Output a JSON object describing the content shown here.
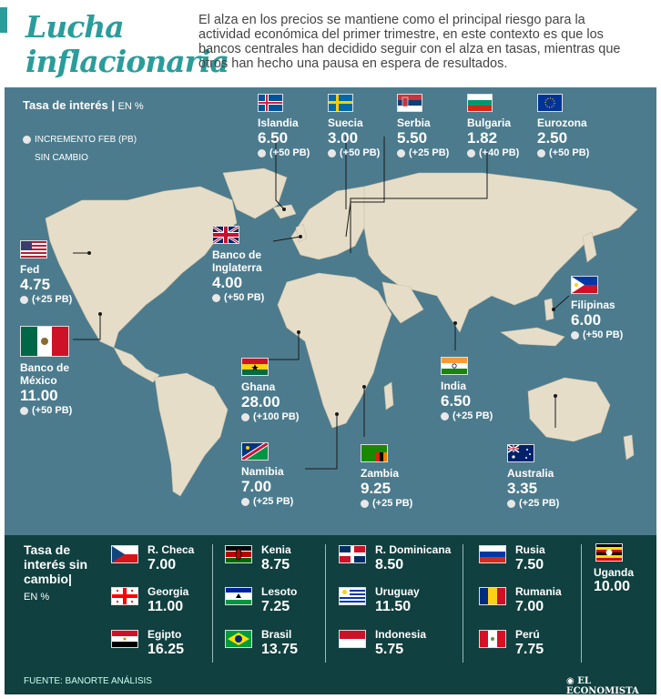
{
  "header": {
    "title_line1": "Lucha",
    "title_line2": "inflacionaria",
    "intro": "El alza en los precios se mantiene como el principal riesgo para la actividad económica del primer trimestre, en este contexto es que los bancos centrales han decidido seguir con el alza en tasas, mientras que otros han hecho una pausa en espera de resultados."
  },
  "legend": {
    "title": "Tasa de interés",
    "unit": "EN %",
    "increment_label": "INCREMENTO FEB (PB)",
    "unchanged_label": "SIN CAMBIO"
  },
  "countries_top": [
    {
      "name": "Islandia",
      "value": "6.50",
      "change": "(+50 PB)"
    },
    {
      "name": "Suecia",
      "value": "3.00",
      "change": "(+50 PB)"
    },
    {
      "name": "Serbia",
      "value": "5.50",
      "change": "(+25 PB)"
    },
    {
      "name": "Bulgaria",
      "value": "1.82",
      "change": "(+40 PB)"
    },
    {
      "name": "Eurozona",
      "value": "2.50",
      "change": "(+50 PB)"
    }
  ],
  "countries_map": {
    "fed": {
      "name": "Fed",
      "value": "4.75",
      "change": "(+25 PB)"
    },
    "uk": {
      "name_l1": "Banco de",
      "name_l2": "Inglaterra",
      "value": "4.00",
      "change": "(+50 PB)"
    },
    "mexico": {
      "name_l1": "Banco de",
      "name_l2": "México",
      "value": "11.00",
      "change": "(+50 PB)"
    },
    "ghana": {
      "name": "Ghana",
      "value": "28.00",
      "change": "(+100 PB)"
    },
    "namibia": {
      "name": "Namibia",
      "value": "7.00",
      "change": "(+25 PB)"
    },
    "zambia": {
      "name": "Zambia",
      "value": "9.25",
      "change": "(+25 PB)"
    },
    "india": {
      "name": "India",
      "value": "6.50",
      "change": "(+25 PB)"
    },
    "filipinas": {
      "name": "Filipinas",
      "value": "6.00",
      "change": "(+50 PB)"
    },
    "australia": {
      "name": "Australia",
      "value": "3.35",
      "change": "(+25 PB)"
    }
  },
  "unchanged": {
    "title_l1": "Tasa de",
    "title_l2": "interés sin",
    "title_l3": "cambio",
    "unit": "EN %",
    "items": [
      {
        "name": "R. Checa",
        "value": "7.00"
      },
      {
        "name": "Georgia",
        "value": "11.00"
      },
      {
        "name": "Egipto",
        "value": "16.25"
      },
      {
        "name": "Kenia",
        "value": "8.75"
      },
      {
        "name": "Lesoto",
        "value": "7.25"
      },
      {
        "name": "Brasil",
        "value": "13.75"
      },
      {
        "name": "R. Dominicana",
        "value": "8.50"
      },
      {
        "name": "Uruguay",
        "value": "11.50"
      },
      {
        "name": "Indonesia",
        "value": "5.75"
      },
      {
        "name": "Rusia",
        "value": "7.50"
      },
      {
        "name": "Rumania",
        "value": "7.00"
      },
      {
        "name": "Perú",
        "value": "7.75"
      },
      {
        "name": "Uganda",
        "value": "10.00"
      }
    ]
  },
  "footer": {
    "source": "FUENTE: BANORTE ANÁLISIS",
    "brand": "EL ECONOMISTA"
  },
  "colors": {
    "accent": "#2a9d9b",
    "map_bg": "#4c7b8d",
    "land": "#e6ddc8",
    "lower_bg": "#10403f"
  }
}
